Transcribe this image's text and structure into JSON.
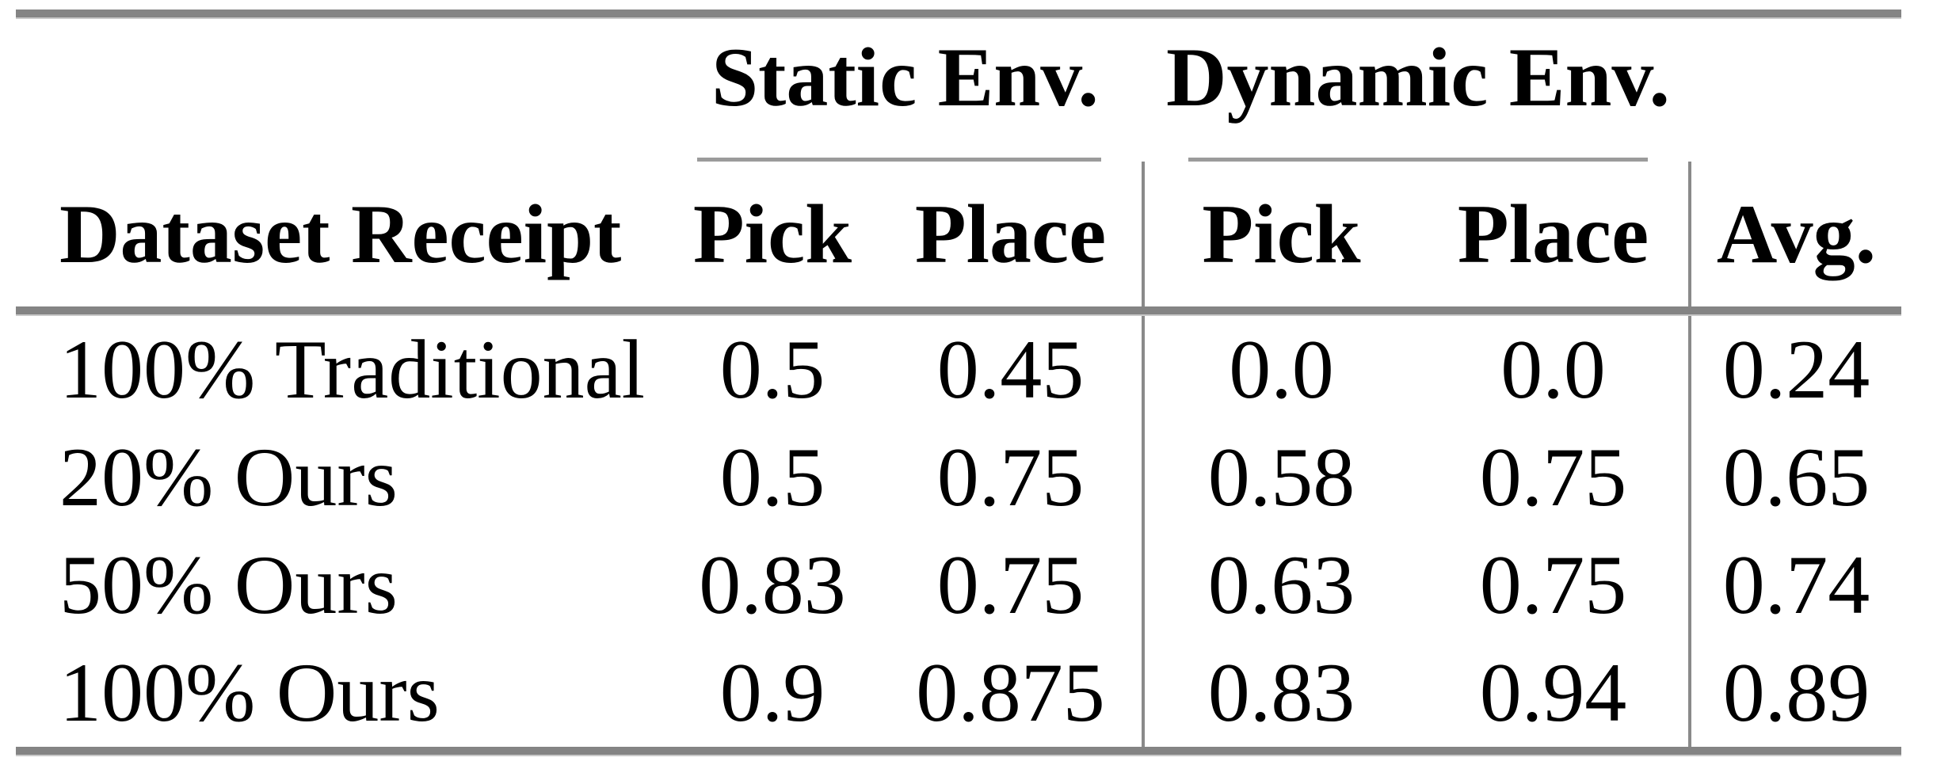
{
  "table": {
    "column_groups": {
      "static": "Static Env.",
      "dynamic": "Dynamic Env."
    },
    "headers": {
      "dataset": "Dataset Receipt",
      "static_pick": "Pick",
      "static_place": "Place",
      "dynamic_pick": "Pick",
      "dynamic_place": "Place",
      "avg": "Avg."
    },
    "rows": [
      {
        "dataset": "100% Traditional",
        "static_pick": "0.5",
        "static_place": "0.45",
        "dynamic_pick": "0.0",
        "dynamic_place": "0.0",
        "avg": "0.24"
      },
      {
        "dataset": "20% Ours",
        "static_pick": "0.5",
        "static_place": "0.75",
        "dynamic_pick": "0.58",
        "dynamic_place": "0.75",
        "avg": "0.65"
      },
      {
        "dataset": "50% Ours",
        "static_pick": "0.83",
        "static_place": "0.75",
        "dynamic_pick": "0.63",
        "dynamic_place": "0.75",
        "avg": "0.74"
      },
      {
        "dataset": "100% Ours",
        "static_pick": "0.9",
        "static_place": "0.875",
        "dynamic_pick": "0.83",
        "dynamic_place": "0.94",
        "avg": "0.89"
      }
    ]
  },
  "colors": {
    "text": "#000000",
    "thick_rule": "#848484",
    "thin_rule": "#9b9b9b",
    "separator": "#8a8a8a",
    "background": "#ffffff"
  }
}
